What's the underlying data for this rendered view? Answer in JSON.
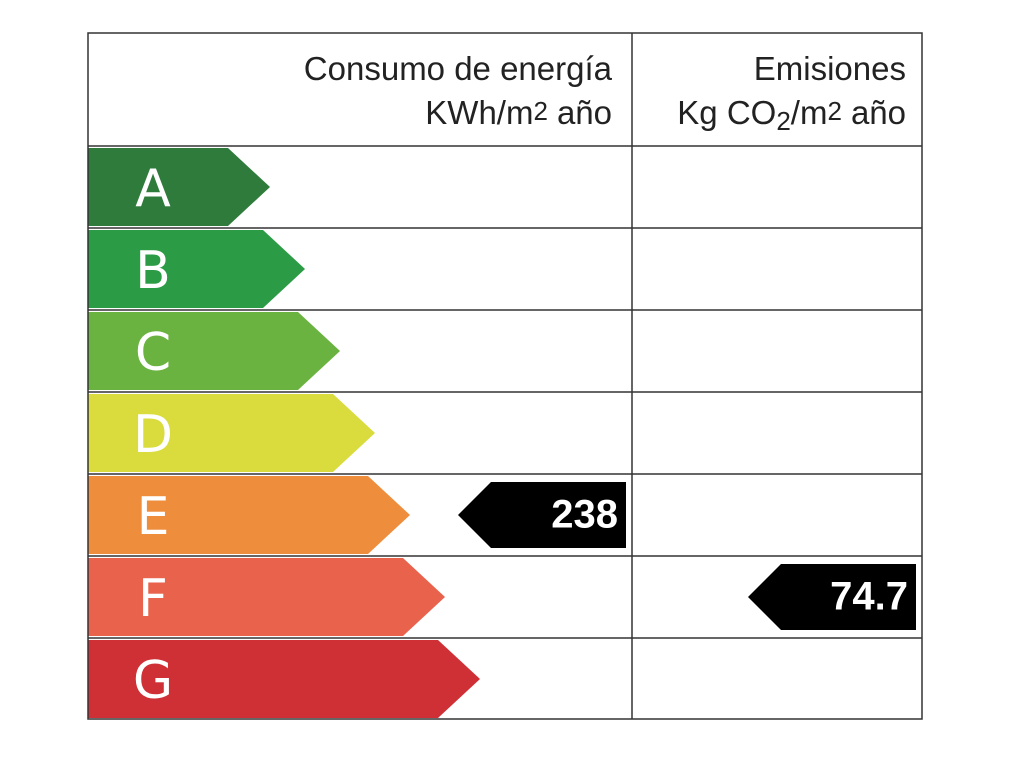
{
  "header": {
    "consumption": {
      "title": "Consumo de energía",
      "unit": [
        "KWh/m",
        "2",
        "año"
      ]
    },
    "emissions": {
      "title": "Emisiones",
      "unit": [
        "Kg CO",
        "2",
        "/m",
        "2",
        "año"
      ]
    }
  },
  "ratings": [
    {
      "letter": "A",
      "color": "#2e7b3c"
    },
    {
      "letter": "B",
      "color": "#2b9b45"
    },
    {
      "letter": "C",
      "color": "#6bb340"
    },
    {
      "letter": "D",
      "color": "#d9dc3c"
    },
    {
      "letter": "E",
      "color": "#ee8d3c"
    },
    {
      "letter": "F",
      "color": "#e8624c"
    },
    {
      "letter": "G",
      "color": "#cf3036"
    }
  ],
  "consumption": {
    "value": 238,
    "rating": "E"
  },
  "emissions": {
    "value": 74.7,
    "rating": "F"
  }
}
